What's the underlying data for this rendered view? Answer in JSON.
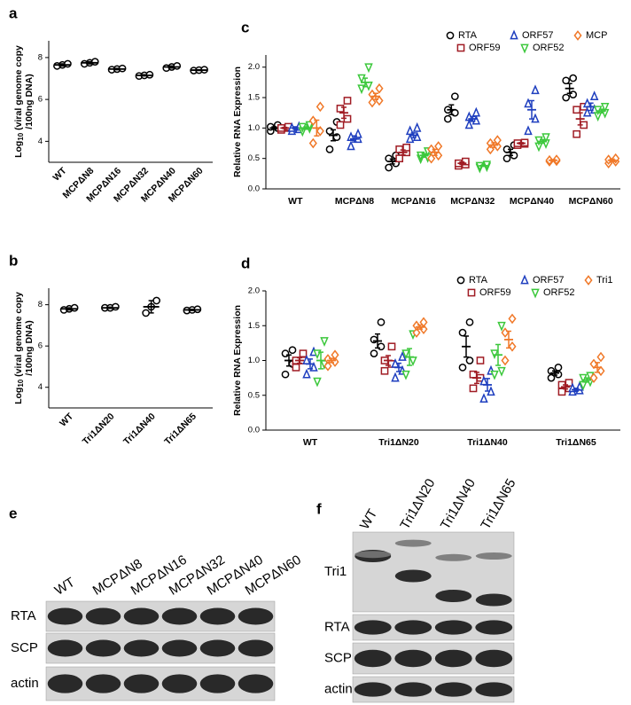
{
  "chart_data": [
    {
      "type": "dot",
      "panel": "a",
      "y_label": {
        "base": "Log",
        "subscript": "10",
        "line1": " (viral genome copy",
        "line2": "/100ng DNA)"
      },
      "categories": [
        "WT",
        "MCPΔN8",
        "MCPΔN16",
        "MCPΔN32",
        "MCPΔN40",
        "MCPΔN60"
      ],
      "ylim": [
        3,
        8.8
      ],
      "yticks": [
        4,
        6,
        8
      ],
      "series": [
        {
          "color": "#000000",
          "marker": "circle",
          "values": [
            [
              7.6,
              7.65,
              7.7
            ],
            [
              7.7,
              7.75,
              7.8
            ],
            [
              7.42,
              7.45,
              7.48
            ],
            [
              7.12,
              7.15,
              7.18
            ],
            [
              7.5,
              7.55,
              7.6
            ],
            [
              7.38,
              7.4,
              7.42
            ]
          ],
          "means": [
            7.65,
            7.75,
            7.45,
            7.15,
            7.55,
            7.4
          ],
          "errors": [
            0.05,
            0.05,
            0.03,
            0.03,
            0.05,
            0.02
          ]
        }
      ]
    },
    {
      "type": "dot",
      "panel": "b",
      "y_label": {
        "base": "Log",
        "subscript": "10",
        "line1": " (viral genome copy",
        "line2": "/100ng DNA)"
      },
      "categories": [
        "WT",
        "Tri1ΔN20",
        "Tri1ΔN40",
        "Tri1ΔN65"
      ],
      "ylim": [
        3,
        8.8
      ],
      "yticks": [
        4,
        6,
        8
      ],
      "series": [
        {
          "color": "#000000",
          "marker": "circle",
          "values": [
            [
              7.75,
              7.8,
              7.85
            ],
            [
              7.85,
              7.85,
              7.9
            ],
            [
              7.6,
              7.9,
              8.2
            ],
            [
              7.72,
              7.75,
              7.78
            ]
          ],
          "means": [
            7.8,
            7.85,
            7.9,
            7.75
          ],
          "errors": [
            0.05,
            0.03,
            0.3,
            0.03
          ]
        }
      ]
    },
    {
      "type": "dot",
      "panel": "c",
      "y_label": "Relative RNA Expression",
      "categories": [
        "WT",
        "MCPΔN8",
        "MCPΔN16",
        "MCPΔN32",
        "MCPΔN40",
        "MCPΔN60"
      ],
      "ylim": [
        0,
        2.2
      ],
      "yticks": [
        {
          "value": 0,
          "label": "0.0"
        },
        0.5,
        {
          "value": 1,
          "label": "1.0"
        },
        1.5,
        {
          "value": 2,
          "label": "2.0"
        }
      ],
      "series": [
        {
          "name": "RTA",
          "color": "#000000",
          "marker": "circle",
          "values": [
            [
              0.95,
              1.0,
              1.02,
              1.05
            ],
            [
              0.65,
              0.85,
              0.95,
              1.1
            ],
            [
              0.35,
              0.42,
              0.5,
              0.55
            ],
            [
              1.15,
              1.25,
              1.3,
              1.52
            ],
            [
              0.5,
              0.55,
              0.65,
              0.72
            ],
            [
              1.5,
              1.55,
              1.78,
              1.82
            ]
          ],
          "means": [
            1.0,
            0.88,
            0.45,
            1.3,
            0.6,
            1.65
          ],
          "errors": [
            0.02,
            0.09,
            0.04,
            0.08,
            0.05,
            0.08
          ]
        },
        {
          "name": "ORF59",
          "color": "#a01c24",
          "marker": "square",
          "values": [
            [
              0.97,
              1.0,
              1.0,
              1.02
            ],
            [
              1.05,
              1.15,
              1.32,
              1.45
            ],
            [
              0.5,
              0.6,
              0.65,
              0.68
            ],
            [
              0.38,
              0.4,
              0.42,
              0.45
            ],
            [
              0.72,
              0.74,
              0.75,
              0.76
            ],
            [
              0.9,
              1.05,
              1.3,
              1.35
            ]
          ],
          "means": [
            1.0,
            1.25,
            0.6,
            0.42,
            0.75,
            1.15
          ],
          "errors": [
            0.01,
            0.09,
            0.04,
            0.02,
            0.01,
            0.1
          ]
        },
        {
          "name": "ORF57",
          "color": "#1f3fbf",
          "marker": "triangle",
          "values": [
            [
              0.95,
              0.98,
              1.0,
              1.02
            ],
            [
              0.7,
              0.82,
              0.85,
              0.9
            ],
            [
              0.82,
              0.85,
              0.95,
              1.0
            ],
            [
              1.05,
              1.12,
              1.18,
              1.25
            ],
            [
              0.95,
              1.15,
              1.4,
              1.62
            ],
            [
              1.25,
              1.3,
              1.4,
              1.52
            ]
          ],
          "means": [
            1.0,
            0.82,
            0.88,
            1.15,
            1.3,
            1.35
          ],
          "errors": [
            0.02,
            0.05,
            0.04,
            0.04,
            0.15,
            0.06
          ]
        },
        {
          "name": "ORF52",
          "color": "#3cc83c",
          "marker": "triangle-down",
          "values": [
            [
              0.95,
              1.0,
              1.02,
              1.05
            ],
            [
              1.65,
              1.7,
              1.82,
              2.0
            ],
            [
              0.5,
              0.52,
              0.55,
              0.62
            ],
            [
              0.35,
              0.37,
              0.38,
              0.4
            ],
            [
              0.7,
              0.75,
              0.8,
              0.85
            ],
            [
              1.2,
              1.25,
              1.3,
              1.35
            ]
          ],
          "means": [
            1.0,
            1.75,
            0.55,
            0.38,
            0.78,
            1.28
          ],
          "errors": [
            0.02,
            0.07,
            0.03,
            0.01,
            0.03,
            0.03
          ]
        },
        {
          "name": "MCP",
          "color": "#f07828",
          "marker": "diamond",
          "values": [
            [
              0.75,
              0.95,
              1.12,
              1.35
            ],
            [
              1.42,
              1.45,
              1.55,
              1.65
            ],
            [
              0.5,
              0.55,
              0.65,
              0.7
            ],
            [
              0.65,
              0.7,
              0.75,
              0.8
            ],
            [
              0.45,
              0.46,
              0.47,
              0.48
            ],
            [
              0.42,
              0.45,
              0.48,
              0.5
            ]
          ],
          "means": [
            1.0,
            1.52,
            0.6,
            0.72,
            0.47,
            0.47
          ],
          "errors": [
            0.13,
            0.05,
            0.05,
            0.04,
            0.01,
            0.02
          ]
        }
      ]
    },
    {
      "type": "dot",
      "panel": "d",
      "y_label": "Relative RNA Expression",
      "categories": [
        "WT",
        "Tri1ΔN20",
        "Tri1ΔN40",
        "Tri1ΔN65"
      ],
      "ylim": [
        0,
        2
      ],
      "yticks": [
        {
          "value": 0,
          "label": "0.0"
        },
        0.5,
        {
          "value": 1,
          "label": "1.0"
        },
        1.5,
        {
          "value": 2,
          "label": "2.0"
        }
      ],
      "series": [
        {
          "name": "RTA",
          "color": "#000000",
          "marker": "circle",
          "values": [
            [
              0.8,
              0.95,
              1.1,
              1.15
            ],
            [
              1.1,
              1.2,
              1.3,
              1.55
            ],
            [
              0.9,
              1.0,
              1.4,
              1.55
            ],
            [
              0.75,
              0.8,
              0.85,
              0.9
            ]
          ],
          "means": [
            1.0,
            1.28,
            1.2,
            0.82
          ],
          "errors": [
            0.08,
            0.1,
            0.15,
            0.03
          ]
        },
        {
          "name": "ORF59",
          "color": "#a01c24",
          "marker": "square",
          "values": [
            [
              0.9,
              1.0,
              1.0,
              1.1
            ],
            [
              0.85,
              0.95,
              1.0,
              1.2
            ],
            [
              0.6,
              0.75,
              0.8,
              1.0
            ],
            [
              0.55,
              0.6,
              0.65,
              0.68
            ]
          ],
          "means": [
            1.0,
            1.0,
            0.75,
            0.62
          ],
          "errors": [
            0.04,
            0.07,
            0.08,
            0.03
          ]
        },
        {
          "name": "ORF57",
          "color": "#1f3fbf",
          "marker": "triangle",
          "values": [
            [
              0.8,
              0.9,
              1.0,
              1.12
            ],
            [
              0.75,
              0.85,
              0.95,
              1.05
            ],
            [
              0.45,
              0.55,
              0.7,
              0.85
            ],
            [
              0.55,
              0.57,
              0.6,
              0.62
            ]
          ],
          "means": [
            0.95,
            0.9,
            0.65,
            0.58
          ],
          "errors": [
            0.07,
            0.06,
            0.09,
            0.02
          ]
        },
        {
          "name": "ORF52",
          "color": "#3cc83c",
          "marker": "triangle-down",
          "values": [
            [
              0.7,
              0.95,
              1.1,
              1.28
            ],
            [
              0.8,
              1.0,
              1.1,
              1.38
            ],
            [
              0.8,
              0.85,
              1.1,
              1.5
            ],
            [
              0.65,
              0.7,
              0.75,
              0.78
            ]
          ],
          "means": [
            1.0,
            1.05,
            1.08,
            0.72
          ],
          "errors": [
            0.12,
            0.12,
            0.15,
            0.03
          ]
        },
        {
          "name": "Tri1",
          "color": "#f07828",
          "marker": "diamond",
          "values": [
            [
              0.92,
              0.98,
              1.02,
              1.08
            ],
            [
              1.4,
              1.45,
              1.5,
              1.55
            ],
            [
              1.0,
              1.2,
              1.4,
              1.6
            ],
            [
              0.75,
              0.85,
              0.95,
              1.05
            ]
          ],
          "means": [
            1.0,
            1.48,
            1.3,
            0.9
          ],
          "errors": [
            0.03,
            0.03,
            0.12,
            0.07
          ]
        }
      ]
    }
  ],
  "blots": [
    {
      "panel": "e",
      "lanes": [
        "WT",
        "MCPΔN8",
        "MCPΔN16",
        "MCPΔN32",
        "MCPΔN40",
        "MCPΔN60"
      ],
      "rows": [
        "RTA",
        "SCP",
        "actin"
      ]
    },
    {
      "panel": "f",
      "lanes": [
        "WT",
        "Tri1ΔN20",
        "Tri1ΔN40",
        "Tri1ΔN65"
      ],
      "rows": [
        "Tri1",
        "RTA",
        "SCP",
        "actin"
      ]
    }
  ]
}
